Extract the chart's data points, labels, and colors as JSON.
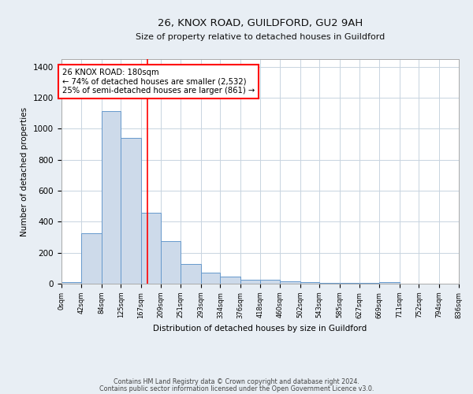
{
  "title1": "26, KNOX ROAD, GUILDFORD, GU2 9AH",
  "title2": "Size of property relative to detached houses in Guildford",
  "xlabel": "Distribution of detached houses by size in Guildford",
  "ylabel": "Number of detached properties",
  "bar_color": "#cddaea",
  "bar_edge_color": "#6699cc",
  "red_line_x": 180,
  "annotation_line1": "26 KNOX ROAD: 180sqm",
  "annotation_line2": "← 74% of detached houses are smaller (2,532)",
  "annotation_line3": "25% of semi-detached houses are larger (861) →",
  "bin_edges": [
    0,
    42,
    84,
    125,
    167,
    209,
    251,
    293,
    334,
    376,
    418,
    460,
    502,
    543,
    585,
    627,
    669,
    711,
    752,
    794,
    836
  ],
  "counts": [
    10,
    325,
    1115,
    940,
    460,
    275,
    125,
    70,
    45,
    25,
    25,
    15,
    10,
    5,
    5,
    5,
    10,
    0,
    0,
    0
  ],
  "ylim": [
    0,
    1450
  ],
  "yticks": [
    0,
    200,
    400,
    600,
    800,
    1000,
    1200,
    1400
  ],
  "footer1": "Contains HM Land Registry data © Crown copyright and database right 2024.",
  "footer2": "Contains public sector information licensed under the Open Government Licence v3.0.",
  "background_color": "#e8eef4",
  "plot_background": "#ffffff",
  "grid_color": "#c8d4e0"
}
